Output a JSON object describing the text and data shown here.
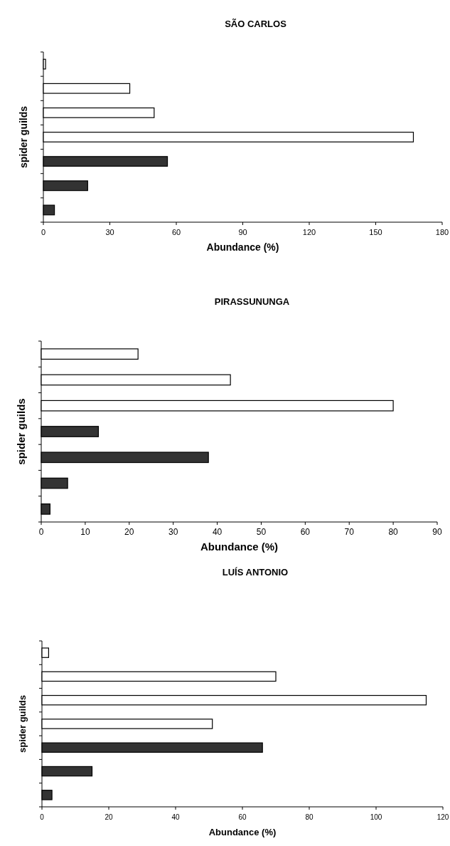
{
  "chart_data": [
    {
      "type": "bar",
      "orientation": "horizontal",
      "title": "SÃO CARLOS",
      "xlabel": "Abundance (%)",
      "ylabel": "spider guilds",
      "categories": [
        null,
        null,
        null,
        null,
        null,
        null,
        null
      ],
      "values": [
        1,
        39,
        50,
        167,
        56,
        20,
        5
      ],
      "colors": [
        "#ffffff",
        "#ffffff",
        "#ffffff",
        "#ffffff",
        "#333333",
        "#333333",
        "#333333"
      ],
      "xlim": [
        0,
        180
      ],
      "xticks": [
        0,
        30,
        60,
        90,
        120,
        150,
        180
      ]
    },
    {
      "type": "bar",
      "orientation": "horizontal",
      "title": "PIRASSUNUNGA",
      "xlabel": "Abundance (%)",
      "ylabel": "spider guilds",
      "categories": [
        null,
        null,
        null,
        null,
        null,
        null,
        null
      ],
      "values": [
        22,
        43,
        80,
        13,
        38,
        6,
        2
      ],
      "colors": [
        "#ffffff",
        "#ffffff",
        "#ffffff",
        "#333333",
        "#333333",
        "#333333",
        "#333333"
      ],
      "xlim": [
        0,
        90
      ],
      "xticks": [
        0,
        10,
        20,
        30,
        40,
        50,
        60,
        70,
        80,
        90
      ]
    },
    {
      "type": "bar",
      "orientation": "horizontal",
      "title": "LUÍS ANTONIO",
      "xlabel": "Abundance (%)",
      "ylabel": "spider guilds",
      "categories": [
        null,
        null,
        null,
        null,
        null,
        null,
        null
      ],
      "values": [
        2,
        70,
        115,
        51,
        66,
        15,
        3
      ],
      "colors": [
        "#ffffff",
        "#ffffff",
        "#ffffff",
        "#ffffff",
        "#333333",
        "#333333",
        "#333333"
      ],
      "xlim": [
        0,
        120
      ],
      "xticks": [
        0,
        20,
        40,
        60,
        80,
        100,
        120
      ]
    }
  ]
}
